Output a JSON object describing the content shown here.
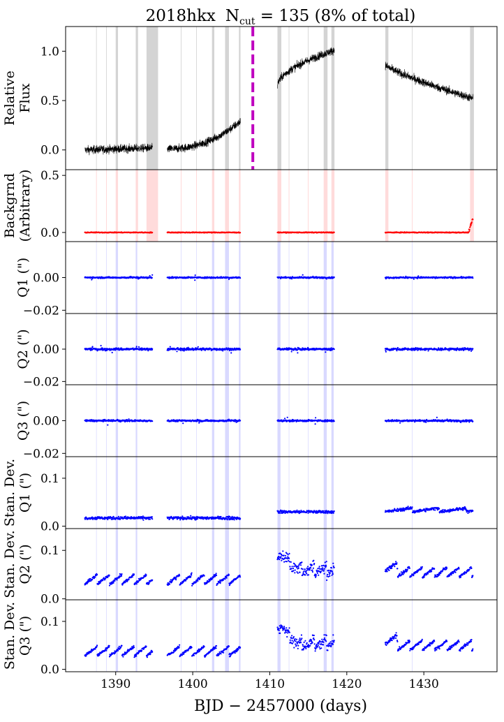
{
  "title_parts": {
    "name": "2018hkx",
    "n": "N",
    "sub": "cut",
    "eq": " = 135 (8% of total)"
  },
  "colors": {
    "flux": "#000000",
    "background": "#ff0000",
    "centroid": "#0000ff",
    "peak_line": "#bf00bf",
    "flux_cut_band": "#b0b0b0",
    "flag_band": "#aaaaff"
  },
  "chart_data": {
    "type": "scatter",
    "xlabel": "BJD − 2457000 (days)",
    "xlim": [
      1383.5,
      1439.5
    ],
    "xticks": [
      1390,
      1400,
      1410,
      1420,
      1430
    ],
    "peak_marker_x": 1407.8,
    "segments": [
      [
        1386.0,
        1394.8
      ],
      [
        1396.7,
        1406.2
      ],
      [
        1411.0,
        1418.4
      ],
      [
        1425.0,
        1436.4
      ]
    ],
    "flux_cut_intervals": [
      [
        1390.0,
        1390.3
      ],
      [
        1392.6,
        1392.9
      ],
      [
        1394.0,
        1395.5
      ],
      [
        1402.5,
        1402.8
      ],
      [
        1404.2,
        1404.7
      ],
      [
        1406.0,
        1406.2
      ],
      [
        1411.0,
        1411.5
      ],
      [
        1417.0,
        1417.5
      ],
      [
        1418.0,
        1418.4
      ],
      [
        1425.0,
        1425.4
      ],
      [
        1436.0,
        1436.5
      ]
    ],
    "flag_intervals": [
      [
        1390.0,
        1390.3
      ],
      [
        1392.6,
        1392.8
      ],
      [
        1402.5,
        1402.8
      ],
      [
        1404.2,
        1404.7
      ],
      [
        1406.0,
        1406.2
      ],
      [
        1411.0,
        1411.4
      ],
      [
        1417.0,
        1417.4
      ],
      [
        1418.0,
        1418.3
      ]
    ],
    "flux_model": {
      "segments": [
        {
          "x0": 1386.0,
          "x1": 1394.8,
          "y0": 0.0,
          "y1": 0.02,
          "curve": 1.0
        },
        {
          "x0": 1396.7,
          "x1": 1406.2,
          "y0": 0.01,
          "y1": 0.29,
          "curve": 2.2
        },
        {
          "x0": 1411.0,
          "x1": 1418.4,
          "y0": 0.65,
          "y1": 1.01,
          "curve": 0.55
        },
        {
          "x0": 1425.0,
          "x1": 1436.4,
          "y0": 0.86,
          "y1": 0.52,
          "curve": 0.8
        }
      ],
      "noise": 0.04
    },
    "panels": [
      {
        "id": "flux",
        "ylabel": [
          "Relative",
          "Flux"
        ],
        "ylim": [
          -0.2,
          1.25
        ],
        "yticks": [
          0.0,
          0.5,
          1.0
        ],
        "tick_labels": [
          "0.0",
          "0.5",
          "1.0"
        ]
      },
      {
        "id": "bkg",
        "ylabel": [
          "Backgrnd",
          "(Arbitrary)"
        ],
        "ylim": [
          -0.08,
          0.55
        ],
        "yticks": [
          0.0,
          0.5
        ],
        "tick_labels": [
          "0.0",
          "0.5"
        ],
        "level": 0.0
      },
      {
        "id": "q1",
        "ylabel": [
          "Q1 (\")"
        ],
        "ylim": [
          -0.022,
          0.022
        ],
        "yticks": [
          0.0,
          -0.02
        ],
        "tick_labels": [
          "0.00",
          "−0.02"
        ],
        "level": 0.0,
        "spread": 0.0004
      },
      {
        "id": "q2",
        "ylabel": [
          "Q2 (\")"
        ],
        "ylim": [
          -0.022,
          0.022
        ],
        "yticks": [
          0.0,
          -0.02
        ],
        "tick_labels": [
          "0.00",
          "−0.02"
        ],
        "level": 0.0,
        "spread": 0.0007
      },
      {
        "id": "q3",
        "ylabel": [
          "Q3 (\")"
        ],
        "ylim": [
          -0.022,
          0.022
        ],
        "yticks": [
          0.0,
          -0.02
        ],
        "tick_labels": [
          "0.00",
          "−0.02"
        ],
        "level": 0.0,
        "spread": 0.0005
      },
      {
        "id": "sd1",
        "ylabel": [
          "Stan. Dev.",
          "Q1 (\")"
        ],
        "ylim": [
          -0.005,
          0.145
        ],
        "yticks": [
          0.0,
          0.1
        ],
        "tick_labels": [
          "0.0",
          "0.1"
        ],
        "levels": [
          0.017,
          0.017,
          0.03,
          0.03
        ]
      },
      {
        "id": "sd2",
        "ylabel": [
          "Stan. Dev.",
          "Q2 (\")"
        ],
        "ylim": [
          -0.002,
          0.145
        ],
        "yticks": [
          0.0,
          0.1
        ],
        "tick_labels": [
          "0.0",
          "0.1"
        ],
        "levels": [
          0.03,
          0.03,
          0.05,
          0.045
        ]
      },
      {
        "id": "sd3",
        "ylabel": [
          "Stan. Dev.",
          "Q3 (\")"
        ],
        "ylim": [
          -0.005,
          0.145
        ],
        "yticks": [
          0.0,
          0.1
        ],
        "tick_labels": [
          "0.0",
          "0.1"
        ],
        "levels": [
          0.028,
          0.028,
          0.045,
          0.04
        ]
      }
    ]
  }
}
